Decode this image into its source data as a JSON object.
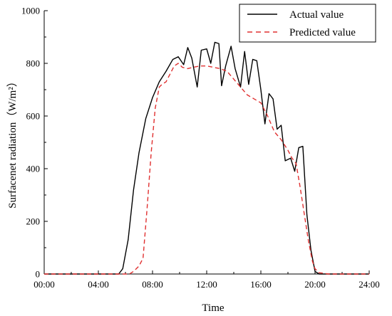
{
  "chart_data": {
    "type": "line",
    "xlabel": "Time",
    "ylabel": "Surfacenet radiation（W/m²）",
    "xlim": [
      0,
      24
    ],
    "ylim": [
      0,
      1000
    ],
    "x_ticks": [
      0,
      4,
      8,
      12,
      16,
      20,
      24
    ],
    "x_tick_labels": [
      "00:00",
      "04:00",
      "08:00",
      "12:00",
      "16:00",
      "20:00",
      "24:00"
    ],
    "y_ticks": [
      0,
      200,
      400,
      600,
      800,
      1000
    ],
    "y_tick_labels": [
      "0",
      "200",
      "400",
      "600",
      "800",
      "1000"
    ],
    "grid": false,
    "legend_placement": "top-right",
    "series": [
      {
        "name": "Actual value",
        "color": "#000000",
        "style": "solid",
        "x": [
          0,
          5.5,
          5.8,
          6.2,
          6.6,
          7.0,
          7.5,
          8.0,
          8.5,
          9.0,
          9.5,
          9.9,
          10.3,
          10.6,
          10.9,
          11.3,
          11.6,
          12.0,
          12.3,
          12.6,
          12.9,
          13.1,
          13.4,
          13.8,
          14.1,
          14.5,
          14.8,
          15.1,
          15.4,
          15.7,
          16.0,
          16.3,
          16.6,
          16.9,
          17.2,
          17.5,
          17.8,
          18.2,
          18.5,
          18.8,
          19.1,
          19.4,
          19.7,
          20.0,
          20.3,
          21,
          24
        ],
        "y": [
          0,
          0,
          20,
          130,
          320,
          460,
          590,
          670,
          730,
          770,
          815,
          825,
          795,
          860,
          820,
          710,
          850,
          855,
          800,
          880,
          875,
          715,
          790,
          865,
          780,
          710,
          845,
          720,
          815,
          810,
          700,
          570,
          685,
          665,
          550,
          565,
          430,
          440,
          390,
          480,
          485,
          225,
          90,
          10,
          0,
          0,
          0
        ]
      },
      {
        "name": "Predicted value",
        "color": "#e03030",
        "style": "dashed",
        "x": [
          0,
          6.3,
          6.6,
          7.0,
          7.3,
          7.6,
          7.9,
          8.2,
          8.5,
          8.7,
          9.0,
          9.3,
          9.6,
          9.9,
          10.2,
          10.6,
          11.0,
          11.5,
          12.0,
          12.5,
          13.0,
          13.5,
          14.0,
          14.5,
          15.0,
          15.5,
          16.0,
          16.5,
          17.0,
          17.5,
          18.0,
          18.3,
          18.6,
          18.9,
          19.2,
          19.5,
          19.8,
          20.0,
          20.3,
          21,
          24
        ],
        "y": [
          0,
          0,
          10,
          30,
          60,
          250,
          460,
          630,
          710,
          720,
          730,
          760,
          790,
          800,
          785,
          780,
          785,
          790,
          790,
          785,
          780,
          770,
          740,
          710,
          680,
          665,
          650,
          600,
          540,
          510,
          470,
          440,
          420,
          330,
          230,
          130,
          50,
          20,
          5,
          0,
          0
        ]
      }
    ]
  }
}
